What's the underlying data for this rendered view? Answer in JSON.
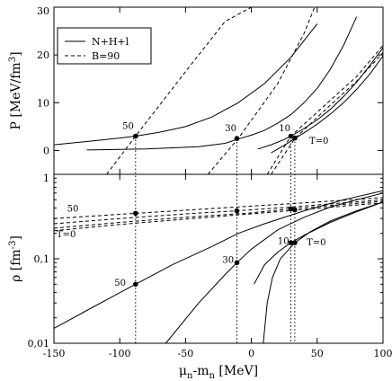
{
  "chart_data": [
    {
      "type": "line",
      "panel": "top",
      "ylabel": "P [MeV/fm",
      "ylabel_sup": "3",
      "ylabel_close": "]",
      "xlim": [
        -150,
        100
      ],
      "ylim": [
        -5,
        30
      ],
      "yticks": [
        0,
        10,
        20,
        30
      ],
      "ytick_labels": [
        "0",
        "10",
        "20",
        "30"
      ],
      "legend": {
        "placement": "top-left",
        "entries": [
          {
            "label": "N+H+l",
            "style": "solid"
          },
          {
            "label": "B=90",
            "style": "dashed"
          }
        ]
      },
      "series": [
        {
          "style": "solid",
          "x": [
            -150,
            -120,
            -100,
            -88,
            -70,
            -50,
            -30,
            -10,
            10,
            30,
            50
          ],
          "y": [
            1.2,
            2.0,
            2.6,
            3.0,
            3.8,
            5.0,
            7.0,
            10.0,
            14.0,
            19.5,
            26.5
          ]
        },
        {
          "style": "solid",
          "x": [
            -125,
            -80,
            -40,
            -20,
            -10,
            0,
            10,
            20,
            30,
            40,
            50,
            60,
            70,
            80
          ],
          "y": [
            0.1,
            0.3,
            0.8,
            1.5,
            2.4,
            3.2,
            4.2,
            5.7,
            7.5,
            10.0,
            13.0,
            17.0,
            22.0,
            28.0
          ]
        },
        {
          "style": "solid",
          "x": [
            5,
            15,
            25,
            30,
            40,
            50,
            60,
            70,
            80,
            90,
            100
          ],
          "y": [
            0.3,
            1.2,
            2.3,
            3.0,
            4.6,
            6.4,
            8.6,
            11.3,
            14.3,
            17.8,
            21.5
          ]
        },
        {
          "style": "solid",
          "x": [
            15,
            22,
            28,
            33,
            40,
            50,
            60,
            70,
            80,
            90,
            100
          ],
          "y": [
            -0.5,
            0.6,
            1.6,
            2.5,
            3.7,
            5.5,
            7.6,
            10.0,
            12.8,
            16.0,
            19.8
          ]
        },
        {
          "style": "dashed",
          "x": [
            -110,
            -88,
            -50,
            -20,
            0
          ],
          "y": [
            -5,
            3,
            16.5,
            27,
            30
          ]
        },
        {
          "style": "dashed",
          "x": [
            -33,
            -10,
            20,
            40,
            48
          ],
          "y": [
            -5,
            2.5,
            14,
            24.5,
            30
          ]
        },
        {
          "style": "dashed",
          "x": [
            12,
            30,
            60,
            80,
            100
          ],
          "y": [
            -5,
            3,
            10.5,
            15.5,
            22
          ]
        },
        {
          "style": "dashed",
          "x": [
            15,
            33,
            60,
            80,
            100
          ],
          "y": [
            -5,
            2.5,
            9.5,
            14.5,
            20.5
          ]
        }
      ],
      "points": [
        {
          "x": -88,
          "y": 3.0
        },
        {
          "x": -11,
          "y": 2.5
        },
        {
          "x": 30,
          "y": 3.0
        },
        {
          "x": 33,
          "y": 2.6
        }
      ],
      "labels": [
        {
          "text": "50",
          "x": -98,
          "y": 4.5
        },
        {
          "text": "30",
          "x": -20,
          "y": 4.0
        },
        {
          "text": "10",
          "x": 21,
          "y": 4.0
        },
        {
          "text": "T=0",
          "x": 44,
          "y": 1.4
        }
      ]
    },
    {
      "type": "line",
      "panel": "bottom",
      "xlabel_main": "μ",
      "xlabel_sub1": "n",
      "xlabel_mid": "-m",
      "xlabel_sub2": "n",
      "xlabel_unit": " [MeV]",
      "ylabel": "ρ [fm",
      "ylabel_sup": "-3",
      "ylabel_close": "]",
      "yscale": "log",
      "xlim": [
        -150,
        100
      ],
      "ylim": [
        0.01,
        1
      ],
      "xticks": [
        -150,
        -100,
        -50,
        0,
        50,
        100
      ],
      "xtick_labels": [
        "-150",
        "-100",
        "-50",
        "0",
        "50",
        "100"
      ],
      "yticks": [
        0.01,
        0.1,
        1
      ],
      "ytick_labels": [
        "0,01",
        "0,1",
        "1"
      ],
      "series": [
        {
          "style": "solid",
          "x": [
            -150,
            -120,
            -88,
            -60,
            -30,
            -10,
            10,
            40,
            70,
            100
          ],
          "y": [
            0.015,
            0.027,
            0.05,
            0.085,
            0.14,
            0.2,
            0.26,
            0.37,
            0.5,
            0.64
          ]
        },
        {
          "style": "solid",
          "x": [
            -65,
            -40,
            -20,
            -11,
            0,
            20,
            40,
            60,
            80,
            100
          ],
          "y": [
            0.01,
            0.03,
            0.065,
            0.09,
            0.13,
            0.22,
            0.31,
            0.41,
            0.5,
            0.6
          ]
        },
        {
          "style": "solid",
          "x": [
            2,
            10,
            20,
            30,
            40,
            60,
            80,
            100
          ],
          "y": [
            0.05,
            0.085,
            0.12,
            0.155,
            0.19,
            0.27,
            0.36,
            0.47
          ]
        },
        {
          "style": "solid",
          "x": [
            9,
            12,
            16,
            22,
            33,
            45,
            60,
            80,
            100
          ],
          "y": [
            0.01,
            0.03,
            0.06,
            0.1,
            0.155,
            0.21,
            0.28,
            0.37,
            0.47
          ]
        },
        {
          "style": "dashed",
          "x": [
            -150,
            -88,
            -40,
            0,
            50,
            100
          ],
          "y": [
            0.3,
            0.345,
            0.385,
            0.42,
            0.47,
            0.53
          ]
        },
        {
          "style": "dashed",
          "x": [
            -150,
            -100,
            -50,
            -11,
            30,
            70,
            100
          ],
          "y": [
            0.26,
            0.3,
            0.34,
            0.37,
            0.41,
            0.46,
            0.5
          ]
        },
        {
          "style": "dashed",
          "x": [
            -150,
            -100,
            -50,
            0,
            30,
            70,
            100
          ],
          "y": [
            0.23,
            0.27,
            0.31,
            0.35,
            0.39,
            0.44,
            0.48
          ]
        },
        {
          "style": "dashed",
          "x": [
            -150,
            -100,
            -50,
            0,
            33,
            70,
            100
          ],
          "y": [
            0.215,
            0.255,
            0.295,
            0.34,
            0.375,
            0.42,
            0.46
          ]
        }
      ],
      "points": [
        {
          "x": -88,
          "y": 0.05
        },
        {
          "x": -88,
          "y": 0.345
        },
        {
          "x": -11,
          "y": 0.09
        },
        {
          "x": -11,
          "y": 0.37
        },
        {
          "x": 30,
          "y": 0.155
        },
        {
          "x": 30,
          "y": 0.39
        },
        {
          "x": 33,
          "y": 0.155
        },
        {
          "x": 33,
          "y": 0.38
        }
      ],
      "labels": [
        {
          "text": "50",
          "x": -140,
          "y": 0.36
        },
        {
          "text": "T=0",
          "x": -148,
          "y": 0.18
        },
        {
          "text": "50",
          "x": -104,
          "y": 0.048
        },
        {
          "text": "30",
          "x": -22,
          "y": 0.09
        },
        {
          "text": "10",
          "x": 20,
          "y": 0.15
        },
        {
          "text": "T=0",
          "x": 42,
          "y": 0.145
        }
      ]
    }
  ]
}
